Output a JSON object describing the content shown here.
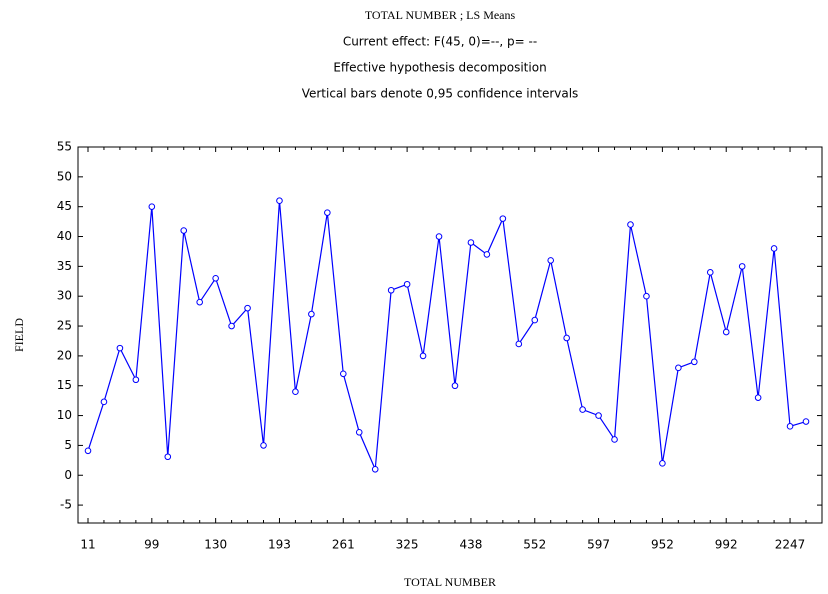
{
  "chart_data": {
    "type": "line",
    "title": "TOTAL NUMBER ; LS Means",
    "subtitles": [
      "Current effect: F(45, 0)=--, p= --",
      "Effective hypothesis decomposition",
      "Vertical bars denote 0,95 confidence intervals"
    ],
    "x_label": "TOTAL NUMBER",
    "y_label": "FIELD",
    "categories": [
      "11",
      null,
      null,
      null,
      "99",
      null,
      null,
      null,
      "130",
      null,
      null,
      null,
      "193",
      null,
      null,
      null,
      "261",
      null,
      null,
      null,
      "325",
      null,
      null,
      null,
      "438",
      null,
      null,
      null,
      "552",
      null,
      null,
      null,
      "597",
      null,
      null,
      null,
      "952",
      null,
      null,
      null,
      "992",
      null,
      null,
      null,
      "2247",
      null
    ],
    "series": [
      {
        "name": "FIELD",
        "color": "#0000ff",
        "values": [
          4.1,
          12.3,
          21.3,
          16,
          45,
          3.1,
          41,
          29,
          33,
          25,
          28,
          5,
          46,
          14,
          27,
          44,
          17,
          7.2,
          1,
          31,
          32,
          20,
          40,
          15,
          39,
          37,
          43,
          22,
          26,
          36,
          23,
          11,
          10,
          6,
          42,
          30,
          2,
          18,
          19,
          34,
          24,
          35,
          13,
          38,
          8.2,
          9
        ]
      }
    ],
    "ylim": [
      -8,
      55
    ],
    "yticks": [
      -5,
      0,
      5,
      10,
      15,
      20,
      25,
      30,
      35,
      40,
      45,
      50,
      55
    ]
  }
}
